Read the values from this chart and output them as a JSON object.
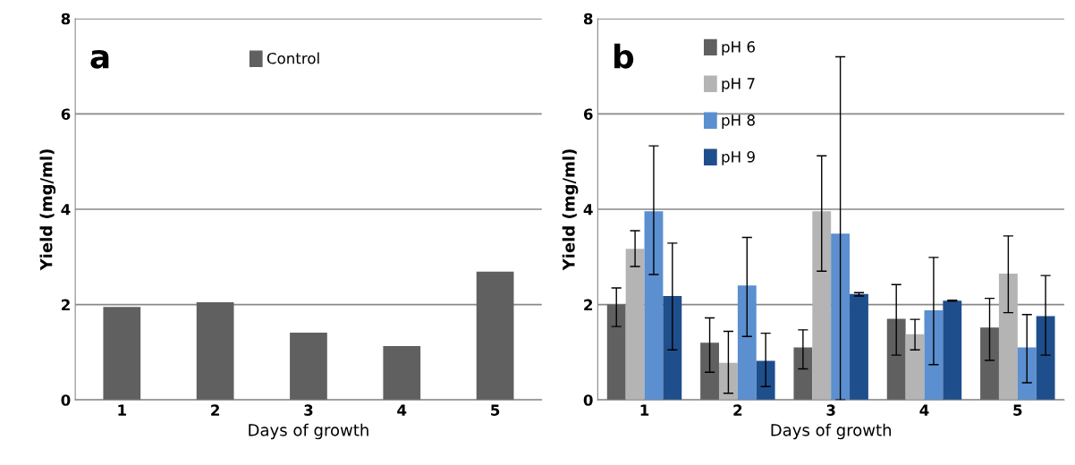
{
  "chart_data": [
    {
      "type": "bar",
      "xlabel": "Days of growth",
      "ylabel": "Yield (mg/ml)",
      "categories": [
        "1",
        "2",
        "3",
        "4",
        "5"
      ],
      "ylim": [
        0,
        8
      ],
      "yticks": [
        0,
        2,
        4,
        6,
        8
      ],
      "grid": "y",
      "legend": "top",
      "series": [
        {
          "name": "Control",
          "color": "#606060",
          "values": [
            1.95,
            2.05,
            1.41,
            1.13,
            2.69
          ]
        }
      ],
      "annotations": [
        "a"
      ]
    },
    {
      "type": "bar",
      "xlabel": "Days of growth",
      "ylabel": "Yield (mg/ml)",
      "categories": [
        "1",
        "2",
        "3",
        "4",
        "5"
      ],
      "ylim": [
        0,
        8
      ],
      "yticks": [
        0,
        2,
        4,
        6,
        8
      ],
      "grid": "y",
      "legend": "top left",
      "series": [
        {
          "name": "pH 6",
          "color": "#606060",
          "values": [
            2.0,
            1.2,
            1.1,
            1.7,
            1.52
          ],
          "errors": [
            [
              1.54,
              2.35
            ],
            [
              0.58,
              1.72
            ],
            [
              0.65,
              1.47
            ],
            [
              0.94,
              2.42
            ],
            [
              0.83,
              2.13
            ]
          ]
        },
        {
          "name": "pH 7",
          "color": "#b4b4b4",
          "values": [
            3.17,
            0.78,
            3.96,
            1.38,
            2.65
          ],
          "errors": [
            [
              2.8,
              3.55
            ],
            [
              0.14,
              1.44
            ],
            [
              2.7,
              5.12
            ],
            [
              1.05,
              1.69
            ],
            [
              1.83,
              3.44
            ]
          ]
        },
        {
          "name": "pH 8",
          "color": "#5b8fd0",
          "values": [
            3.96,
            2.4,
            3.49,
            1.88,
            1.1
          ],
          "errors": [
            [
              2.63,
              5.33
            ],
            [
              1.33,
              3.41
            ],
            [
              0.0,
              7.2
            ],
            [
              0.74,
              2.99
            ],
            [
              0.36,
              1.79
            ]
          ]
        },
        {
          "name": "pH 9",
          "color": "#1f4e8c",
          "values": [
            2.18,
            0.82,
            2.22,
            2.08,
            1.76
          ],
          "errors": [
            [
              1.05,
              3.29
            ],
            [
              0.28,
              1.4
            ],
            [
              2.18,
              2.25
            ],
            [
              2.07,
              2.09
            ],
            [
              0.94,
              2.61
            ]
          ]
        }
      ],
      "annotations": [
        "b"
      ]
    }
  ]
}
